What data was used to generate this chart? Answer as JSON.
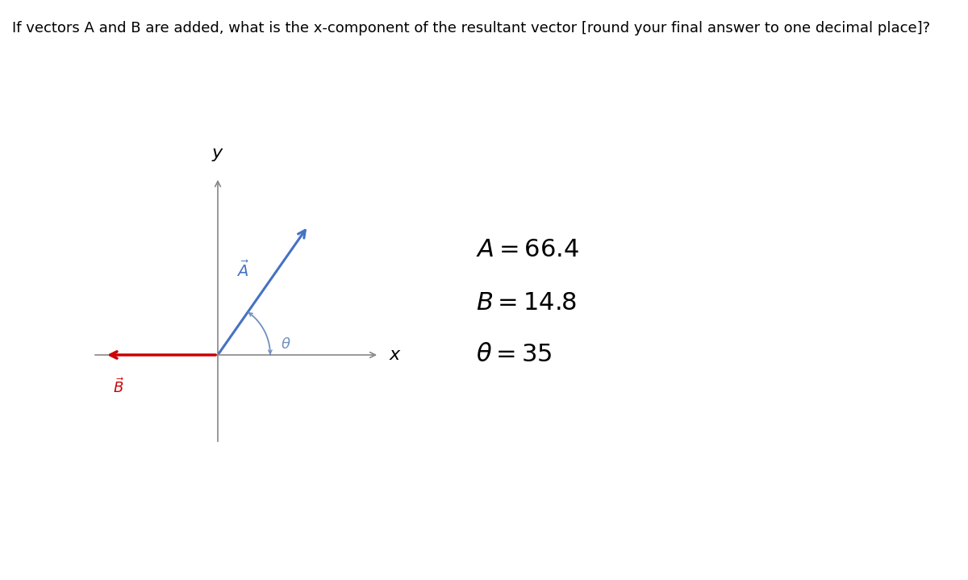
{
  "title": "If vectors A and B are added, what is the x-component of the resultant vector [round your final answer to one decimal place]?",
  "title_fontsize": 13,
  "A_magnitude": 66.4,
  "B_magnitude": 14.8,
  "theta_deg": 35,
  "A_color": "#4472c4",
  "B_color": "#cc0000",
  "arc_color": "#7090c0",
  "axis_color": "#888888",
  "label_A": "$\\vec{A}$",
  "label_B": "$\\vec{B}$",
  "label_x": "$x$",
  "label_y": "$y$",
  "eq_A": "$A = 66.4$",
  "eq_B": "$B = 14.8$",
  "eq_theta": "$\\theta = 35$",
  "background_color": "#ffffff",
  "fig_width": 12.0,
  "fig_height": 7.19
}
